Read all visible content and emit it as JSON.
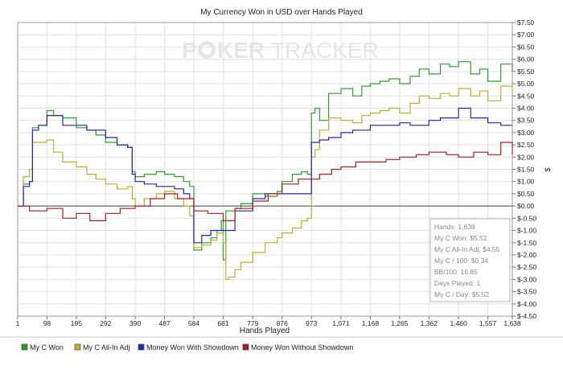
{
  "chart_data": {
    "type": "line",
    "title": "My Currency Won in USD over Hands Played",
    "xlabel": "Hands Played",
    "ylabel": "$",
    "watermark": {
      "left": "P",
      "mid": "KER",
      "right": "TRACKER"
    },
    "xlim": [
      1,
      1638
    ],
    "ylim": [
      -4.5,
      7.5
    ],
    "x_ticks": [
      1,
      98,
      195,
      292,
      390,
      487,
      584,
      681,
      779,
      876,
      973,
      1071,
      1168,
      1265,
      1362,
      1460,
      1557,
      1638
    ],
    "x_tick_labels": [
      "1",
      "98",
      "195",
      "292",
      "390",
      "487",
      "584",
      "681",
      "779",
      "876",
      "973",
      "1,071",
      "1,168",
      "1,265",
      "1,362",
      "1,460",
      "1,557",
      "1,638"
    ],
    "y_ticks": [
      7.5,
      7,
      6.5,
      6,
      5.5,
      5,
      4.5,
      4,
      3.5,
      3,
      2.5,
      2,
      1.5,
      1,
      0.5,
      0,
      -0.5,
      -1,
      -1.5,
      -2,
      -2.5,
      -3,
      -3.5,
      -4,
      -4.5
    ],
    "y_tick_labels": [
      "$7.50",
      "$7.00",
      "$6.50",
      "$6.00",
      "$5.50",
      "$5.00",
      "$4.50",
      "$4.00",
      "$3.50",
      "$3.00",
      "$2.50",
      "$2.00",
      "$1.50",
      "$1.00",
      "$0.50",
      "$0.00",
      "$-0.50",
      "$-1.00",
      "$-1.50",
      "$-2.00",
      "$-2.50",
      "$-3.00",
      "$-3.50",
      "$-4.00",
      "$-4.50"
    ],
    "grid": true,
    "legend_position": "bottom",
    "series": [
      {
        "name": "My C Won",
        "color": "#2aa02a",
        "x": [
          1,
          20,
          40,
          50,
          70,
          98,
          120,
          150,
          195,
          230,
          260,
          292,
          330,
          365,
          380,
          390,
          420,
          460,
          487,
          520,
          550,
          570,
          584,
          610,
          640,
          660,
          675,
          681,
          690,
          720,
          740,
          779,
          820,
          860,
          876,
          910,
          940,
          960,
          973,
          985,
          1000,
          1030,
          1071,
          1110,
          1140,
          1168,
          1200,
          1230,
          1265,
          1300,
          1330,
          1362,
          1400,
          1430,
          1460,
          1500,
          1530,
          1557,
          1600,
          1638
        ],
        "y": [
          0,
          0.9,
          1.0,
          3.2,
          3.3,
          3.9,
          3.7,
          3.6,
          3.2,
          3.1,
          2.9,
          2.6,
          2.5,
          2.4,
          1.4,
          1.2,
          1.3,
          1.4,
          1.3,
          1.2,
          1.0,
          0.8,
          -1.8,
          -1.5,
          -1.3,
          -1.0,
          -0.6,
          -2.2,
          -0.2,
          -0.1,
          0.1,
          0.5,
          0.4,
          0.6,
          1.0,
          1.3,
          1.4,
          1.3,
          3.8,
          4.0,
          3.5,
          4.6,
          4.8,
          4.5,
          4.9,
          5.0,
          5.1,
          5.2,
          5.0,
          5.3,
          5.6,
          5.4,
          5.8,
          5.7,
          5.9,
          5.4,
          5.6,
          5.1,
          5.8,
          5.5
        ]
      },
      {
        "name": "My C All-In Adj",
        "color": "#b5b12e",
        "x": [
          1,
          20,
          40,
          50,
          70,
          98,
          120,
          150,
          195,
          230,
          260,
          292,
          330,
          365,
          380,
          390,
          420,
          460,
          487,
          520,
          550,
          570,
          584,
          610,
          640,
          660,
          681,
          690,
          700,
          720,
          740,
          779,
          820,
          860,
          876,
          910,
          940,
          960,
          973,
          985,
          1000,
          1030,
          1071,
          1110,
          1140,
          1168,
          1200,
          1230,
          1265,
          1300,
          1330,
          1362,
          1400,
          1430,
          1460,
          1500,
          1530,
          1557,
          1600,
          1638
        ],
        "y": [
          0,
          1.2,
          1.5,
          2.6,
          2.6,
          2.7,
          2.2,
          1.8,
          1.6,
          1.3,
          1.1,
          0.9,
          0.7,
          0.8,
          0.3,
          0.0,
          0.3,
          0.5,
          0.6,
          0.3,
          0.0,
          -0.4,
          -1.7,
          -1.6,
          -1.4,
          -1.1,
          -1.5,
          -3.0,
          -2.9,
          -2.6,
          -2.3,
          -1.9,
          -1.5,
          -1.3,
          -1.1,
          -0.9,
          -0.6,
          -0.5,
          2.0,
          2.3,
          3.1,
          3.6,
          3.5,
          3.4,
          3.7,
          3.8,
          3.9,
          4.0,
          3.8,
          4.2,
          4.5,
          4.4,
          4.6,
          4.5,
          4.8,
          4.5,
          4.7,
          4.3,
          4.9,
          4.6
        ]
      },
      {
        "name": "Money Won With Showdown",
        "color": "#2424b8",
        "x": [
          1,
          20,
          40,
          50,
          70,
          98,
          150,
          195,
          230,
          292,
          330,
          365,
          380,
          390,
          420,
          460,
          487,
          520,
          550,
          570,
          584,
          610,
          640,
          681,
          720,
          779,
          820,
          876,
          920,
          973,
          990,
          1000,
          1030,
          1071,
          1110,
          1168,
          1200,
          1265,
          1300,
          1362,
          1400,
          1460,
          1500,
          1557,
          1600,
          1638
        ],
        "y": [
          0,
          0.8,
          1.0,
          3.1,
          3.3,
          3.7,
          3.3,
          3.3,
          3.1,
          2.8,
          2.5,
          2.4,
          1.3,
          1.0,
          0.9,
          0.8,
          0.8,
          0.7,
          0.5,
          0.3,
          -1.5,
          -1.2,
          -1.0,
          -1.0,
          -0.2,
          0.3,
          0.5,
          0.5,
          0.5,
          2.6,
          2.6,
          2.7,
          2.8,
          3.0,
          3.1,
          3.3,
          3.3,
          3.4,
          3.3,
          3.5,
          3.6,
          4.0,
          3.6,
          3.4,
          3.3,
          3.3
        ]
      },
      {
        "name": "Money Won Without Showdown",
        "color": "#a81e1e",
        "x": [
          1,
          40,
          98,
          150,
          195,
          240,
          292,
          340,
          390,
          440,
          487,
          530,
          584,
          630,
          681,
          720,
          779,
          830,
          876,
          930,
          973,
          1000,
          1040,
          1071,
          1120,
          1168,
          1220,
          1265,
          1320,
          1362,
          1420,
          1460,
          1510,
          1557,
          1600,
          1638
        ],
        "y": [
          0,
          -0.2,
          -0.1,
          -0.5,
          -0.3,
          -0.6,
          -0.3,
          -0.1,
          0.0,
          0.3,
          0.5,
          0.3,
          -0.2,
          -0.3,
          -0.6,
          -0.1,
          0.2,
          0.5,
          0.9,
          1.1,
          1.1,
          1.3,
          1.5,
          1.6,
          1.8,
          1.8,
          1.9,
          2.0,
          2.1,
          2.2,
          2.1,
          2.0,
          2.2,
          2.1,
          2.6,
          2.1
        ]
      }
    ],
    "stats_box": {
      "position": "lower-right",
      "lines": [
        "Hands: 1,638",
        "My C Won: $5.52",
        "My C All-In Adj: $4.55",
        "My C / 100: $0.34",
        "BB/100: 16.85",
        "Days Played: 1",
        "My C / Day: $5.52"
      ]
    }
  }
}
